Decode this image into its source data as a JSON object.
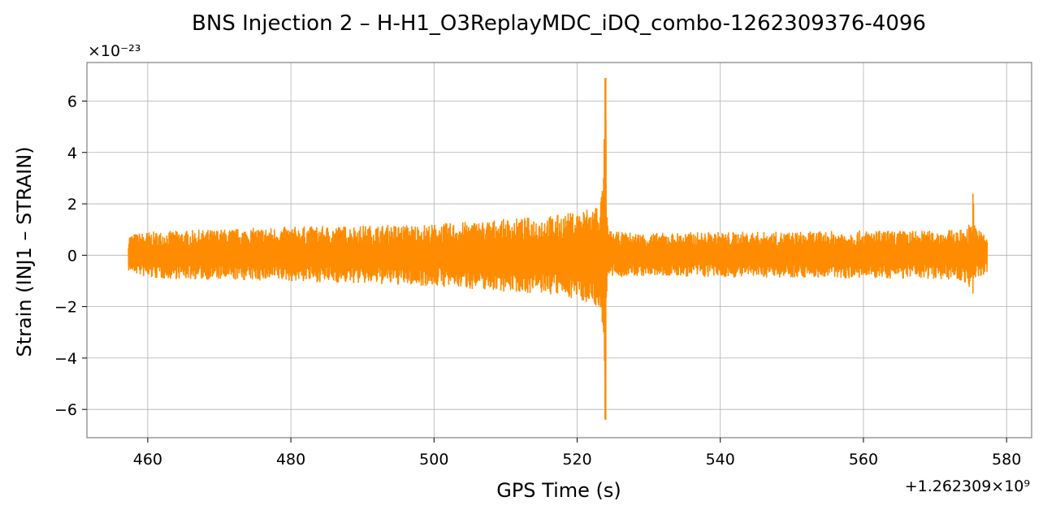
{
  "chart_data": {
    "type": "line",
    "title": "BNS Injection 2 – H-H1_O3ReplayMDC_iDQ_combo-1262309376-4096",
    "xlabel": "GPS Time (s)",
    "ylabel": "Strain (INJ1 – STRAIN)",
    "x_offset_label": "+1.262309×10⁹",
    "y_multiplier_label": "×10⁻²³",
    "xlim": [
      451.5,
      583.5
    ],
    "ylim": [
      -7.1,
      7.5
    ],
    "x_ticks": [
      460,
      480,
      500,
      520,
      540,
      560,
      580
    ],
    "x_tick_labels": [
      "460",
      "480",
      "500",
      "520",
      "540",
      "560",
      "580"
    ],
    "y_ticks": [
      -6,
      -4,
      -2,
      0,
      2,
      4,
      6
    ],
    "y_tick_labels": [
      "−6",
      "−4",
      "−2",
      "0",
      "2",
      "4",
      "6"
    ],
    "grid": true,
    "line_color": "#ff8c00",
    "series": [
      {
        "x": [
          457.3,
          460,
          470,
          480,
          490,
          500,
          505,
          510,
          515,
          518,
          520,
          521,
          522,
          523,
          523.5,
          523.7,
          523.9,
          524.0,
          524.1,
          524.3,
          525,
          530,
          540,
          550,
          560,
          570,
          574,
          575.0,
          575.3,
          575.6,
          576,
          577.3
        ],
        "upper": [
          0.8,
          0.9,
          1.0,
          1.1,
          1.15,
          1.2,
          1.3,
          1.4,
          1.5,
          1.6,
          1.7,
          1.8,
          1.9,
          2.1,
          2.5,
          3.0,
          6.9,
          6.9,
          2.0,
          1.0,
          0.9,
          0.85,
          0.9,
          0.9,
          0.95,
          0.95,
          1.0,
          1.3,
          2.4,
          1.3,
          1.0,
          0.8
        ],
        "lower": [
          -0.6,
          -0.9,
          -0.95,
          -1.0,
          -1.1,
          -1.2,
          -1.3,
          -1.4,
          -1.5,
          -1.6,
          -1.7,
          -1.8,
          -1.9,
          -2.1,
          -2.6,
          -3.0,
          -6.4,
          -6.4,
          -2.0,
          -0.9,
          -0.85,
          -0.8,
          -0.85,
          -0.85,
          -0.9,
          -0.9,
          -1.0,
          -1.3,
          -1.5,
          -1.0,
          -0.9,
          -0.7
        ]
      }
    ]
  }
}
